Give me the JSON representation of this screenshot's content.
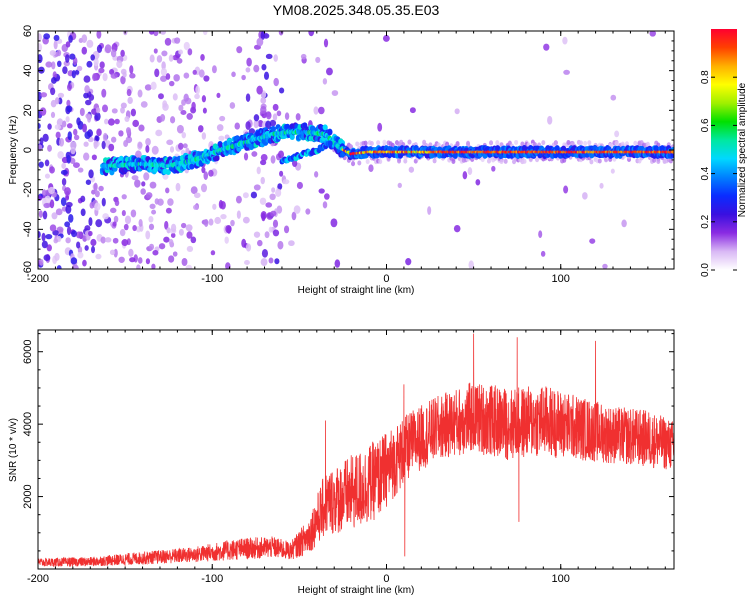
{
  "page": {
    "title": "YM08.2025.348.05.35.E03"
  },
  "chart_data": [
    {
      "type": "heatmap",
      "title": "YM08.2025.348.05.35.E03",
      "xlabel": "Height of straight line (km)",
      "ylabel": "Frequency (Hz)",
      "xlim": [
        -200,
        165
      ],
      "ylim": [
        -60,
        60
      ],
      "x_ticks": [
        -200,
        -100,
        0,
        100
      ],
      "x_tick_labels": [
        "-200",
        "-100",
        "0",
        "100"
      ],
      "y_ticks": [
        -60,
        -40,
        -20,
        0,
        20,
        40,
        60
      ],
      "y_tick_labels": [
        "-60",
        "-40",
        "-20",
        "0",
        "20",
        "40",
        "60"
      ],
      "grid": false,
      "colorbar": {
        "label": "Normalized spectral amplitude",
        "range": [
          0,
          1
        ],
        "ticks": [
          0.0,
          0.2,
          0.4,
          0.6,
          0.8
        ],
        "tick_labels": [
          "0.0",
          "0.2",
          "0.4",
          "0.6",
          "0.8"
        ],
        "colormap": [
          "#ffffff",
          "#d9b8f5",
          "#8a2be2",
          "#3a10e0",
          "#0a2cff",
          "#0080ff",
          "#00d8ff",
          "#00e8a0",
          "#00e000",
          "#a0f000",
          "#ffff00",
          "#ffb000",
          "#ff4000",
          "#ff0030"
        ]
      },
      "ridge": {
        "description_points": [
          {
            "x": -160,
            "y": -8
          },
          {
            "x": -140,
            "y": -7
          },
          {
            "x": -125,
            "y": -8
          },
          {
            "x": -110,
            "y": -5
          },
          {
            "x": -95,
            "y": 0
          },
          {
            "x": -80,
            "y": 4
          },
          {
            "x": -65,
            "y": 8
          },
          {
            "x": -55,
            "y": 9
          },
          {
            "x": -45,
            "y": 9
          },
          {
            "x": -35,
            "y": 8
          },
          {
            "x": -28,
            "y": 2
          },
          {
            "x": -20,
            "y": -2
          },
          {
            "x": -10,
            "y": -1
          },
          {
            "x": 0,
            "y": -1
          },
          {
            "x": 50,
            "y": -1
          },
          {
            "x": 100,
            "y": -1
          },
          {
            "x": 165,
            "y": -1
          }
        ],
        "secondary_points": [
          {
            "x": -60,
            "y": -5
          },
          {
            "x": -50,
            "y": -3
          },
          {
            "x": -40,
            "y": 0
          },
          {
            "x": -32,
            "y": 4
          }
        ]
      }
    },
    {
      "type": "line",
      "xlabel": "Height of straight line (km)",
      "ylabel": "SNR (10 * v/v)",
      "xlim": [
        -200,
        165
      ],
      "ylim": [
        0,
        6600
      ],
      "x_ticks": [
        -200,
        -100,
        0,
        100
      ],
      "x_tick_labels": [
        "-200",
        "-100",
        "0",
        "100"
      ],
      "y_ticks": [
        2000,
        4000,
        6000
      ],
      "y_tick_labels": [
        "2000",
        "4000",
        "6000"
      ],
      "grid": false,
      "series": [
        {
          "color": "#f03030",
          "envelope": [
            {
              "x": -200,
              "mean": 180,
              "amp": 120
            },
            {
              "x": -170,
              "mean": 200,
              "amp": 130
            },
            {
              "x": -140,
              "mean": 300,
              "amp": 180
            },
            {
              "x": -110,
              "mean": 400,
              "amp": 220
            },
            {
              "x": -85,
              "mean": 550,
              "amp": 300
            },
            {
              "x": -65,
              "mean": 600,
              "amp": 300
            },
            {
              "x": -55,
              "mean": 500,
              "amp": 250
            },
            {
              "x": -45,
              "mean": 900,
              "amp": 500
            },
            {
              "x": -35,
              "mean": 1800,
              "amp": 900
            },
            {
              "x": -25,
              "mean": 2000,
              "amp": 1000
            },
            {
              "x": -15,
              "mean": 2200,
              "amp": 1100
            },
            {
              "x": -5,
              "mean": 2500,
              "amp": 1100
            },
            {
              "x": 5,
              "mean": 3000,
              "amp": 1000
            },
            {
              "x": 15,
              "mean": 3500,
              "amp": 900
            },
            {
              "x": 30,
              "mean": 3900,
              "amp": 900
            },
            {
              "x": 50,
              "mean": 4200,
              "amp": 1000
            },
            {
              "x": 70,
              "mean": 4000,
              "amp": 1000
            },
            {
              "x": 90,
              "mean": 4100,
              "amp": 1000
            },
            {
              "x": 110,
              "mean": 3900,
              "amp": 900
            },
            {
              "x": 130,
              "mean": 3700,
              "amp": 800
            },
            {
              "x": 150,
              "mean": 3600,
              "amp": 800
            },
            {
              "x": 165,
              "mean": 3400,
              "amp": 700
            }
          ],
          "spikes": [
            {
              "x": 10,
              "y": 5100
            },
            {
              "x": 10.5,
              "y": 350
            },
            {
              "x": 50,
              "y": 6500
            },
            {
              "x": 75,
              "y": 6400
            },
            {
              "x": 76,
              "y": 1300
            },
            {
              "x": 120,
              "y": 6300
            },
            {
              "x": -35,
              "y": 4100
            }
          ]
        }
      ]
    }
  ]
}
